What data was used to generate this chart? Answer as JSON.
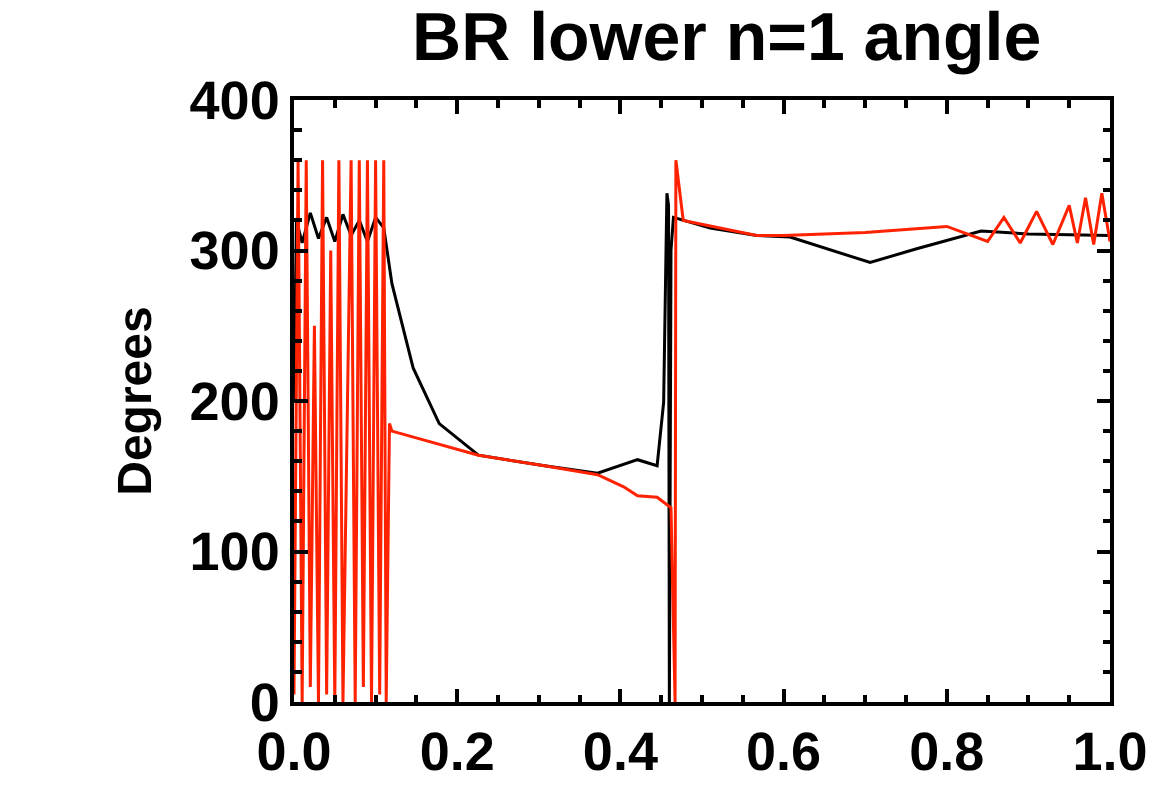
{
  "chart_data": {
    "type": "line",
    "title": "BR lower n=1 angle",
    "ylabel": "Degrees",
    "xlim": [
      0,
      1
    ],
    "ylim": [
      0,
      400
    ],
    "xticks": [
      {
        "value": 0,
        "label": "0.0"
      },
      {
        "value": 0.2,
        "label": "0.2"
      },
      {
        "value": 0.4,
        "label": "0.4"
      },
      {
        "value": 0.6,
        "label": "0.6"
      },
      {
        "value": 0.8,
        "label": "0.8"
      },
      {
        "value": 1,
        "label": "1.0"
      }
    ],
    "yticks": [
      0,
      100,
      200,
      300,
      400
    ],
    "marker": "none",
    "line_style": "solid",
    "series": [
      {
        "color": "#000000",
        "x": [
          0,
          0.003,
          0.01,
          0.02,
          0.03,
          0.04,
          0.05,
          0.06,
          0.07,
          0.08,
          0.09,
          0.1,
          0.11,
          0.12,
          0.146,
          0.178,
          0.226,
          0.307,
          0.372,
          0.421,
          0.445,
          0.453,
          0.457,
          0.459,
          0.46,
          0.462,
          0.465,
          0.51,
          0.567,
          0.608,
          0.706,
          0.762,
          0.842,
          0.9,
          1.0
        ],
        "values": [
          200,
          320,
          305,
          325,
          308,
          322,
          306,
          324,
          310,
          320,
          306,
          322,
          315,
          278,
          222,
          185,
          164,
          157,
          152,
          161,
          157,
          199,
          338,
          330,
          0,
          300,
          322,
          315,
          310,
          309,
          292,
          301,
          313,
          311,
          310
        ]
      },
      {
        "color": "#ff2200",
        "x": [
          0,
          0.005,
          0.01,
          0.015,
          0.02,
          0.025,
          0.03,
          0.035,
          0.04,
          0.045,
          0.05,
          0.055,
          0.06,
          0.065,
          0.07,
          0.075,
          0.08,
          0.085,
          0.09,
          0.095,
          0.1,
          0.105,
          0.11,
          0.113,
          0.117,
          0.12,
          0.226,
          0.307,
          0.372,
          0.404,
          0.421,
          0.445,
          0.462,
          0.467,
          0.468,
          0.477,
          0.567,
          0.6,
          0.7,
          0.8,
          0.85,
          0.87,
          0.89,
          0.91,
          0.93,
          0.95,
          0.96,
          0.97,
          0.98,
          0.99,
          1.0
        ],
        "values": [
          5,
          360,
          0,
          360,
          10,
          250,
          0,
          360,
          5,
          300,
          0,
          360,
          0,
          180,
          360,
          0,
          360,
          10,
          360,
          0,
          360,
          5,
          360,
          0,
          185,
          180,
          164,
          157,
          151,
          143,
          137,
          136,
          129,
          0,
          360,
          320,
          310,
          310,
          312,
          316,
          306,
          322,
          305,
          326,
          304,
          330,
          305,
          335,
          304,
          338,
          306
        ]
      }
    ]
  }
}
